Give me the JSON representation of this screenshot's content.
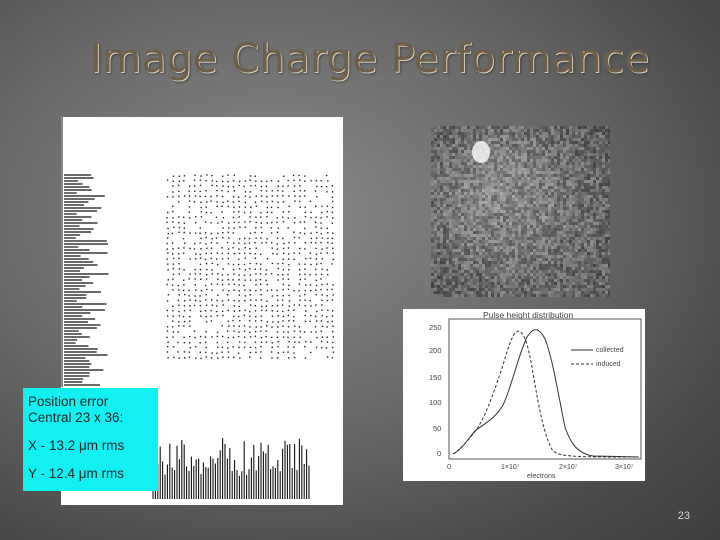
{
  "slide": {
    "title": "Image Charge Performance",
    "page_number": "23"
  },
  "annotation": {
    "line1": "Position error",
    "line2": "Central 23 x 36:",
    "line3": "X - 13.2 μm rms",
    "line4": "Y - 12.4 μm rms",
    "background_color": "#12f0f2"
  },
  "pulse_plot": {
    "title": "Pulse height distribution",
    "legend_collected": "collected",
    "legend_induced": "induced",
    "xlabel": "electrons",
    "y_ticks": [
      "250",
      "200",
      "150",
      "100",
      "50",
      "0"
    ],
    "x_ticks": [
      "0",
      "1×10⁷",
      "2×10⁷",
      "3×10⁷"
    ]
  }
}
